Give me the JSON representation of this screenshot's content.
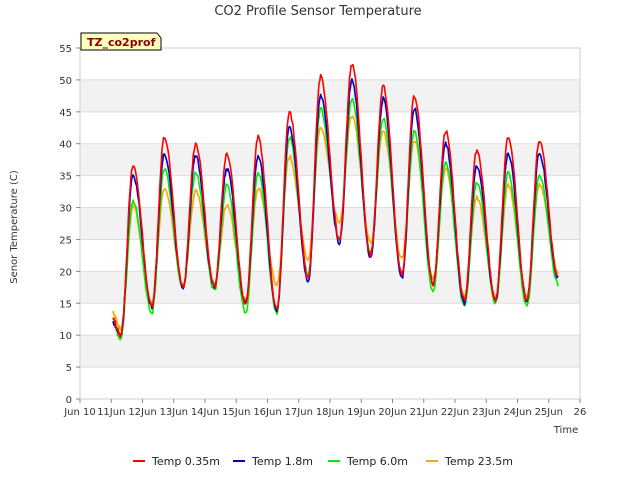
{
  "chart_data": {
    "type": "line",
    "title": "CO2 Profile Sensor Temperature",
    "xlabel": "Time",
    "ylabel": "Senor Temperature (C)",
    "badge": "TZ_co2prof",
    "ylim": [
      0,
      55
    ],
    "yticks": [
      0,
      5,
      10,
      15,
      20,
      25,
      30,
      35,
      40,
      45,
      50,
      55
    ],
    "xlim": [
      10,
      26
    ],
    "xticks": [
      10,
      11,
      12,
      13,
      14,
      15,
      16,
      17,
      18,
      19,
      20,
      21,
      22,
      23,
      24,
      25,
      26
    ],
    "xtick_labels": [
      "Jun 10",
      "11Jun",
      "12Jun",
      "13Jun",
      "14Jun",
      "15Jun",
      "16Jun",
      "17Jun",
      "18Jun",
      "19Jun",
      "20Jun",
      "21Jun",
      "22Jun",
      "23Jun",
      "24Jun",
      "25Jun",
      "26"
    ],
    "legend_position": "bottom-center",
    "daily_extremes": {
      "days": [
        11,
        12,
        13,
        14,
        15,
        16,
        17,
        18,
        19,
        20,
        21,
        22,
        23,
        24,
        25
      ],
      "note": "per-day minimum (near local ~0.45 day fraction) and maximum (near ~0.75 day fraction) per series"
    },
    "series": [
      {
        "name": "Temp 0.35m",
        "color": "#ff0000",
        "mins": [
          12.5,
          10,
          14.5,
          17.5,
          17.5,
          15,
          14,
          19,
          25,
          22.5,
          19.5,
          18,
          15.5,
          15.5,
          15.5,
          19
        ],
        "maxs": [
          36.5,
          41,
          40,
          38.5,
          41,
          45,
          50.5,
          52.5,
          49,
          47.5,
          42,
          39,
          41,
          40.5
        ]
      },
      {
        "name": "Temp 1.8m",
        "color": "#0000cc",
        "mins": [
          12,
          10,
          14.5,
          17.5,
          17.5,
          15,
          14,
          18.5,
          24.5,
          22,
          19,
          18,
          15,
          15.5,
          15.5,
          19
        ],
        "maxs": [
          35,
          38.5,
          38,
          36,
          38,
          42.5,
          47.5,
          50,
          47,
          45.5,
          40,
          36.5,
          38.5,
          38.5
        ]
      },
      {
        "name": "Temp 6.0m",
        "color": "#00ee00",
        "mins": [
          12,
          9.5,
          13.5,
          17.5,
          17,
          13.5,
          13.5,
          19.5,
          25,
          23,
          19.5,
          17,
          14.5,
          15,
          14.5,
          18
        ],
        "maxs": [
          31,
          36,
          35.5,
          33.5,
          35.5,
          41,
          45.5,
          47,
          44,
          42,
          37,
          34,
          35.5,
          35
        ]
      },
      {
        "name": "Temp 23.5m",
        "color": "#ffa500",
        "mins": [
          13.5,
          11,
          15,
          18,
          18,
          15.5,
          18,
          22,
          27.5,
          24.5,
          22,
          19,
          16,
          16,
          16,
          20
        ],
        "maxs": [
          30,
          33,
          32.5,
          30.5,
          33,
          38,
          42.5,
          44.5,
          42,
          40.5,
          36,
          31.5,
          33.5,
          33.5
        ]
      }
    ]
  }
}
